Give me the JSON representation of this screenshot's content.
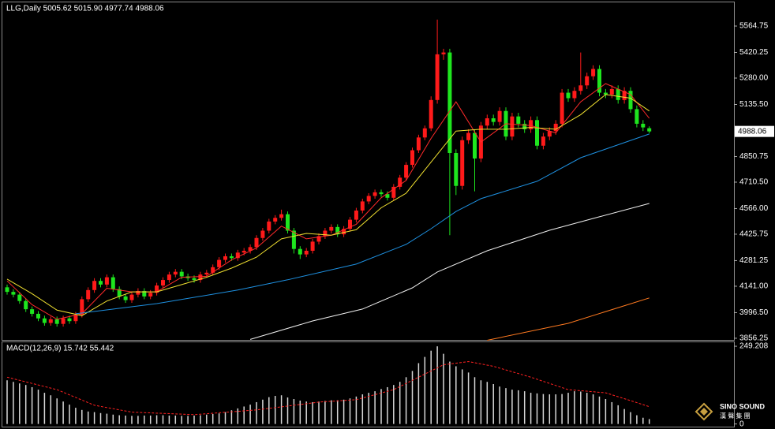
{
  "chart_data": [
    {
      "type": "candlestick",
      "title": "LLG,Daily 5005.62 5015.90 4977.74 4988.06",
      "open": [
        4135,
        4110,
        4095,
        4060,
        4015,
        3990,
        3965,
        3940,
        3960,
        3935,
        3965,
        3950,
        3985,
        4070,
        4120,
        4170,
        4150,
        4190,
        4125,
        4085,
        4065,
        4095,
        4115,
        4085,
        4105,
        4145,
        4175,
        4205,
        4220,
        4195,
        4185,
        4175,
        4205,
        4215,
        4245,
        4285,
        4305,
        4295,
        4325,
        4335,
        4355,
        4405,
        4445,
        4495,
        4515,
        4535,
        4445,
        4345,
        4315,
        4335,
        4385,
        4415,
        4445,
        4465,
        4425,
        4455,
        4505,
        4555,
        4605,
        4635,
        4655,
        4645,
        4625,
        4685,
        4735,
        4805,
        4885,
        4955,
        5005,
        5160,
        5410,
        5420,
        4870,
        4690,
        4940,
        4980,
        4840,
        5020,
        5060,
        5040,
        5100,
        4960,
        5070,
        5030,
        5000,
        5050,
        4910,
        4960,
        4990,
        5030,
        5200,
        5170,
        5210,
        5240,
        5290,
        5330,
        5200,
        5190,
        5220,
        5160,
        5210,
        5110,
        5030,
        5005.62
      ],
      "high": [
        4150,
        4125,
        4110,
        4075,
        4030,
        4005,
        3980,
        3975,
        3975,
        3980,
        3980,
        4000,
        4085,
        4135,
        4185,
        4185,
        4205,
        4205,
        4140,
        4100,
        4110,
        4130,
        4130,
        4120,
        4160,
        4190,
        4220,
        4235,
        4235,
        4210,
        4200,
        4220,
        4230,
        4260,
        4300,
        4320,
        4320,
        4340,
        4350,
        4370,
        4420,
        4460,
        4510,
        4530,
        4560,
        4550,
        4460,
        4360,
        4350,
        4400,
        4430,
        4460,
        4480,
        4480,
        4470,
        4520,
        4570,
        4620,
        4650,
        4670,
        4670,
        4660,
        4700,
        4750,
        4820,
        4900,
        4970,
        5020,
        5180,
        5600,
        5440,
        5440,
        4890,
        4960,
        5000,
        5000,
        5040,
        5080,
        5080,
        5120,
        5120,
        5090,
        5090,
        5050,
        5070,
        5070,
        4980,
        5010,
        5050,
        5220,
        5220,
        5230,
        5420,
        5310,
        5350,
        5350,
        5220,
        5240,
        5240,
        5230,
        5230,
        5130,
        5050,
        5015.9
      ],
      "low": [
        4095,
        4080,
        4045,
        4000,
        3975,
        3950,
        3925,
        3925,
        3920,
        3920,
        3935,
        3935,
        3970,
        4055,
        4105,
        4135,
        4135,
        4110,
        4070,
        4050,
        4050,
        4080,
        4070,
        4070,
        4090,
        4130,
        4160,
        4190,
        4180,
        4170,
        4160,
        4160,
        4190,
        4200,
        4230,
        4270,
        4280,
        4280,
        4310,
        4320,
        4340,
        4390,
        4430,
        4480,
        4500,
        4430,
        4320,
        4290,
        4300,
        4320,
        4370,
        4400,
        4430,
        4410,
        4410,
        4440,
        4490,
        4540,
        4590,
        4620,
        4630,
        4610,
        4610,
        4670,
        4720,
        4790,
        4870,
        4940,
        4990,
        5140,
        5380,
        4420,
        4640,
        4670,
        4920,
        4660,
        4820,
        5000,
        5020,
        5020,
        4940,
        4940,
        5010,
        4980,
        4980,
        4890,
        4890,
        4940,
        4970,
        5010,
        5150,
        5150,
        5190,
        5220,
        5270,
        5180,
        5170,
        5170,
        5140,
        5140,
        5090,
        5010,
        4990,
        4977.74
      ],
      "close": [
        4110,
        4095,
        4060,
        4015,
        3990,
        3965,
        3940,
        3960,
        3935,
        3965,
        3950,
        3985,
        4070,
        4120,
        4170,
        4150,
        4190,
        4125,
        4085,
        4065,
        4095,
        4115,
        4085,
        4105,
        4145,
        4175,
        4205,
        4220,
        4195,
        4185,
        4175,
        4205,
        4215,
        4245,
        4285,
        4305,
        4295,
        4325,
        4335,
        4355,
        4405,
        4445,
        4495,
        4515,
        4535,
        4445,
        4345,
        4315,
        4335,
        4385,
        4415,
        4445,
        4465,
        4425,
        4455,
        4505,
        4555,
        4605,
        4635,
        4655,
        4645,
        4625,
        4685,
        4735,
        4805,
        4885,
        4955,
        5005,
        5160,
        5410,
        5420,
        4870,
        4690,
        4940,
        4980,
        4840,
        5020,
        5060,
        5040,
        5100,
        4960,
        5070,
        5030,
        5000,
        5050,
        4910,
        4960,
        4990,
        5030,
        5200,
        5170,
        5210,
        5240,
        5290,
        5330,
        5200,
        5190,
        5220,
        5160,
        5210,
        5110,
        5030,
        5010,
        4988.06
      ],
      "up_color": "#ff1a1a",
      "down_color": "#1ee61e",
      "lines": [
        {
          "color": "#ff2a2a",
          "x": [
            0,
            4,
            8,
            12,
            16,
            20,
            24,
            28,
            32,
            36,
            40,
            44,
            48,
            52,
            56,
            60,
            64,
            68,
            72,
            76,
            80,
            84,
            88,
            92,
            96,
            100,
            103
          ],
          "values": [
            4170,
            4040,
            3960,
            3990,
            4130,
            4110,
            4110,
            4190,
            4195,
            4285,
            4350,
            4470,
            4400,
            4420,
            4480,
            4625,
            4720,
            4950,
            5150,
            4930,
            5030,
            5020,
            4980,
            5150,
            5250,
            5190,
            5060
          ]
        },
        {
          "color": "#f0e030",
          "x": [
            0,
            4,
            8,
            12,
            16,
            20,
            24,
            28,
            32,
            36,
            40,
            44,
            48,
            52,
            56,
            60,
            64,
            68,
            72,
            76,
            80,
            84,
            88,
            92,
            96,
            100,
            103
          ],
          "values": [
            4180,
            4100,
            4010,
            3980,
            4060,
            4110,
            4110,
            4150,
            4190,
            4240,
            4300,
            4400,
            4430,
            4420,
            4450,
            4570,
            4650,
            4820,
            4990,
            5000,
            5000,
            5010,
            5000,
            5080,
            5190,
            5170,
            5100
          ]
        },
        {
          "color": "#1e90e0",
          "x": [
            11,
            24,
            37,
            45,
            56,
            64,
            68,
            72,
            76,
            85,
            92,
            103
          ],
          "values": [
            3990,
            4046,
            4120,
            4176,
            4262,
            4370,
            4456,
            4550,
            4620,
            4715,
            4844,
            4974
          ]
        },
        {
          "color": "#f0f0f0",
          "x": [
            39,
            49,
            57,
            65,
            69,
            77,
            87,
            95,
            103
          ],
          "values": [
            3850,
            3951,
            4016,
            4132,
            4219,
            4335,
            4447,
            4521,
            4594
          ]
        },
        {
          "color": "#ff7a20",
          "x": [
            77,
            90,
            103
          ],
          "values": [
            3845,
            3938,
            4077
          ]
        }
      ],
      "ylim": [
        3843,
        5690
      ],
      "yticks": [
        5564.75,
        5420.25,
        {
          "value": 5280,
          "label": "5280.00"
        },
        {
          "value": 5135.5,
          "label": "5135.50"
        },
        4850.75,
        {
          "value": 4710.5,
          "label": "4710.50"
        },
        {
          "value": 4566,
          "label": "4566.00"
        },
        4425.75,
        4281.25,
        {
          "value": 4141,
          "label": "4141.00"
        },
        {
          "value": 3996.5,
          "label": "3996.50"
        },
        3856.25
      ]
    },
    {
      "type": "macd",
      "title": "MACD(12,26,9) 15.742 55.442",
      "values": [
        140,
        135,
        130,
        125,
        118,
        110,
        100,
        92,
        82,
        72,
        62,
        52,
        45,
        40,
        38,
        35,
        33,
        30,
        28,
        27,
        26,
        26,
        27,
        27,
        28,
        28,
        27,
        27,
        26,
        26,
        27,
        28,
        30,
        32,
        34,
        38,
        44,
        50,
        56,
        62,
        70,
        78,
        86,
        90,
        92,
        85,
        80,
        75,
        72,
        70,
        72,
        74,
        76,
        76,
        78,
        82,
        88,
        95,
        100,
        105,
        112,
        118,
        125,
        135,
        150,
        170,
        195,
        215,
        235,
        249,
        225,
        200,
        185,
        175,
        165,
        150,
        140,
        135,
        128,
        120,
        115,
        110,
        108,
        105,
        100,
        98,
        96,
        95,
        95,
        96,
        100,
        105,
        104,
        100,
        95,
        88,
        80,
        70,
        60,
        48,
        38,
        28,
        20,
        15.742
      ],
      "color": "#d8d8d8",
      "signal": {
        "color": "#ff2020",
        "x": [
          0,
          8,
          14,
          20,
          30,
          40,
          50,
          56,
          62,
          66,
          70,
          74,
          78,
          84,
          90,
          96,
          100,
          103
        ],
        "values": [
          150,
          110,
          60,
          38,
          30,
          45,
          70,
          78,
          110,
          150,
          190,
          200,
          185,
          150,
          110,
          100,
          75,
          55.442
        ]
      },
      "ylim": [
        -6,
        262
      ],
      "yticks": [
        249.208,
        0
      ]
    }
  ],
  "logo": {
    "name": "SINO SOUND",
    "sub": "漢 聲 集 團"
  }
}
